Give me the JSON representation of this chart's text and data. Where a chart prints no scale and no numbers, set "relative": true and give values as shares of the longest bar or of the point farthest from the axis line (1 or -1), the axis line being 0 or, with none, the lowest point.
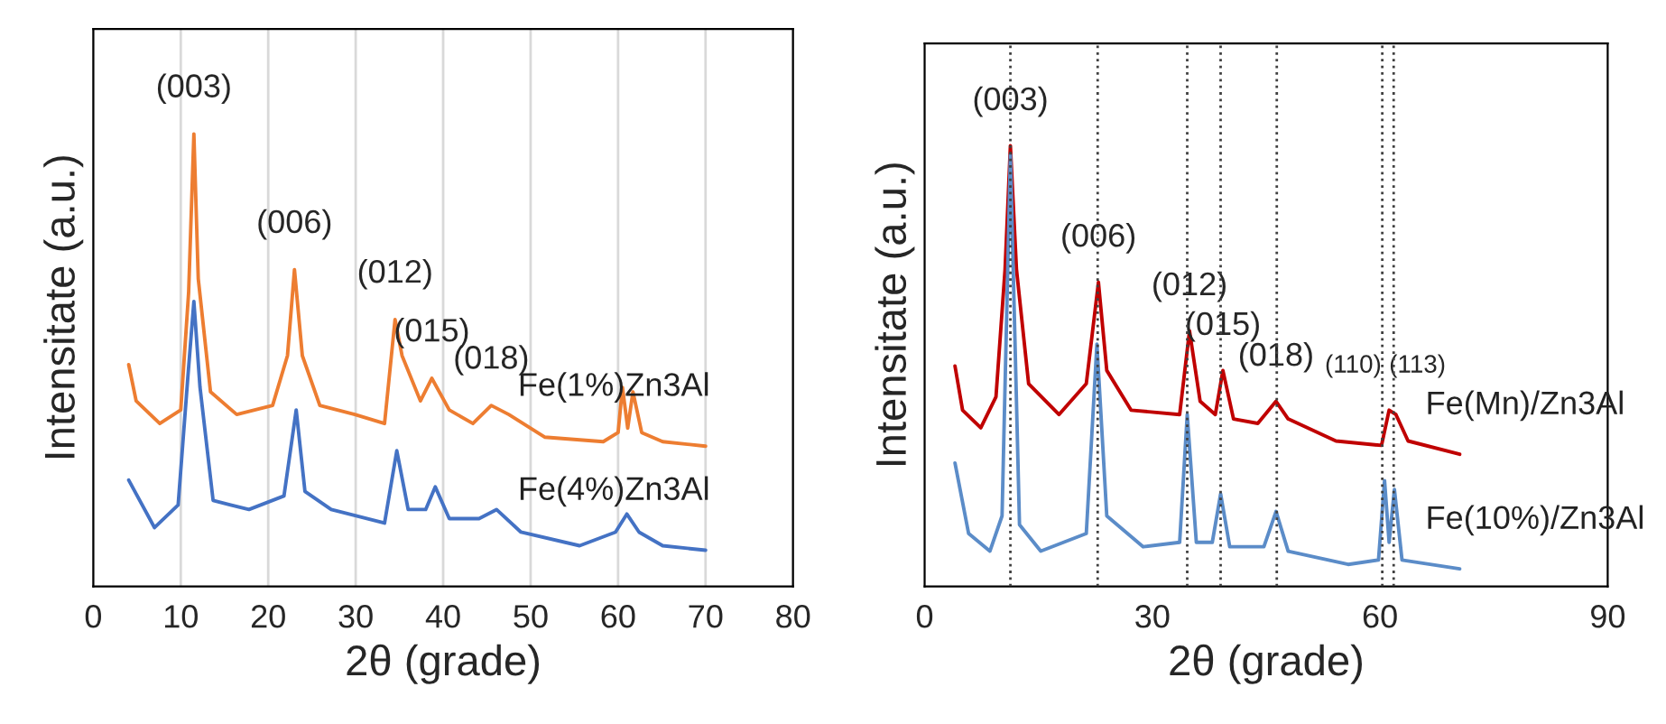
{
  "chart_data": [
    {
      "type": "line",
      "relative": true,
      "xlabel": "2θ (grade)",
      "ylabel": "Intensitate (a.u.)",
      "xlim": [
        0,
        80
      ],
      "xticks": [
        0,
        10,
        20,
        30,
        40,
        50,
        60,
        70,
        80
      ],
      "grid": "x",
      "legend": false,
      "series": [
        {
          "name": "Fe(1%)Zn3Al",
          "color": "#ed7d31",
          "x": [
            4.05,
            4.9,
            7.6,
            10,
            10.9,
            11.5,
            12.0,
            13.4,
            16.4,
            20.5,
            22.2,
            23.0,
            23.9,
            25.9,
            29.9,
            33.3,
            34.5,
            35.3,
            37.4,
            38.7,
            40.7,
            43.4,
            45.5,
            47.5,
            51.6,
            58.3,
            60.0,
            60.5,
            61.1,
            61.7,
            62.7,
            65.1,
            70
          ],
          "values": [
            0.49,
            0.41,
            0.36,
            0.39,
            0.65,
            1.0,
            0.68,
            0.43,
            0.38,
            0.4,
            0.51,
            0.7,
            0.51,
            0.4,
            0.38,
            0.36,
            0.59,
            0.51,
            0.41,
            0.46,
            0.39,
            0.36,
            0.4,
            0.38,
            0.33,
            0.32,
            0.34,
            0.44,
            0.35,
            0.43,
            0.34,
            0.32,
            0.31
          ]
        },
        {
          "name": "Fe(4%)Zn3Al",
          "color": "#4472c4",
          "x": [
            4.05,
            7.0,
            9.7,
            10.8,
            11.5,
            12.2,
            13.7,
            17.8,
            21.8,
            23.2,
            24.2,
            27.2,
            33.3,
            34.7,
            36.0,
            38.0,
            39.1,
            40.7,
            44.1,
            46.1,
            48.9,
            55.6,
            59.7,
            61.0,
            62.4,
            65.1,
            70
          ],
          "values": [
            0.235,
            0.13,
            0.18,
            0.46,
            0.63,
            0.44,
            0.19,
            0.17,
            0.2,
            0.39,
            0.21,
            0.17,
            0.14,
            0.3,
            0.17,
            0.17,
            0.22,
            0.15,
            0.15,
            0.17,
            0.12,
            0.09,
            0.12,
            0.16,
            0.12,
            0.09,
            0.08
          ]
        }
      ],
      "annotations": [
        {
          "text": "(003)",
          "x": 11.5,
          "y": 1.0
        },
        {
          "text": "(006)",
          "x": 23.0,
          "y": 0.7
        },
        {
          "text": "(012)",
          "x": 34.5,
          "y": 0.59
        },
        {
          "text": "(015)",
          "x": 38.7,
          "y": 0.46
        },
        {
          "text": "(018)",
          "x": 45.5,
          "y": 0.4
        }
      ]
    },
    {
      "type": "line",
      "relative": true,
      "xlabel": "2θ (grade)",
      "ylabel": "Intensitate (a.u.)",
      "xlim": [
        0,
        90
      ],
      "xticks": [
        0,
        30,
        60,
        90
      ],
      "legend": false,
      "series": [
        {
          "name": "Fe(Mn)/Zn3Al",
          "color": "#c00000",
          "x": [
            4.0,
            5.0,
            7.4,
            9.4,
            10.6,
            11.3,
            12.1,
            13.7,
            17.7,
            21.3,
            22.9,
            24.0,
            27.2,
            33.6,
            34.9,
            36.3,
            38.3,
            39.3,
            40.7,
            43.9,
            46.3,
            47.9,
            54.2,
            60.2,
            61.2,
            62.1,
            63.7,
            70.5
          ],
          "values": [
            0.5,
            0.4,
            0.36,
            0.43,
            0.72,
            1.0,
            0.72,
            0.46,
            0.39,
            0.46,
            0.69,
            0.49,
            0.4,
            0.39,
            0.58,
            0.42,
            0.39,
            0.49,
            0.38,
            0.37,
            0.42,
            0.38,
            0.33,
            0.32,
            0.4,
            0.39,
            0.33,
            0.3
          ]
        },
        {
          "name": "Fe(10%)/Zn3Al",
          "color": "#5b8cc8",
          "x": [
            4.0,
            5.8,
            8.6,
            10.2,
            11.3,
            12.5,
            15.3,
            21.3,
            22.7,
            24.0,
            28.8,
            33.6,
            34.6,
            35.8,
            37.9,
            39.0,
            40.2,
            44.7,
            46.3,
            47.9,
            55.8,
            59.8,
            60.6,
            61.2,
            61.9,
            62.9,
            70.5
          ],
          "values": [
            0.28,
            0.12,
            0.08,
            0.16,
            0.98,
            0.14,
            0.08,
            0.12,
            0.55,
            0.16,
            0.09,
            0.1,
            0.39,
            0.1,
            0.1,
            0.21,
            0.09,
            0.09,
            0.17,
            0.08,
            0.05,
            0.06,
            0.24,
            0.1,
            0.22,
            0.06,
            0.04
          ]
        }
      ],
      "ref_lines": [
        {
          "axis": "x",
          "value": 11.3,
          "color": "#404040",
          "line_style": "dotted"
        },
        {
          "axis": "x",
          "value": 22.8,
          "color": "#404040",
          "line_style": "dotted"
        },
        {
          "axis": "x",
          "value": 34.6,
          "color": "#404040",
          "line_style": "dotted"
        },
        {
          "axis": "x",
          "value": 39.0,
          "color": "#404040",
          "line_style": "dotted"
        },
        {
          "axis": "x",
          "value": 46.4,
          "color": "#404040",
          "line_style": "dotted"
        },
        {
          "axis": "x",
          "value": 60.3,
          "color": "#404040",
          "line_style": "dotted"
        },
        {
          "axis": "x",
          "value": 61.8,
          "color": "#404040",
          "line_style": "dotted"
        }
      ],
      "annotations": [
        {
          "text": "(003)",
          "x": 11.3,
          "y": 1.0
        },
        {
          "text": "(006)",
          "x": 22.9,
          "y": 0.69
        },
        {
          "text": "(012)",
          "x": 34.9,
          "y": 0.58
        },
        {
          "text": "(015)",
          "x": 39.3,
          "y": 0.49
        },
        {
          "text": "(018)",
          "x": 46.3,
          "y": 0.42
        },
        {
          "text": "(110)",
          "x": 60.2,
          "y": 0.32
        },
        {
          "text": "(113)",
          "x": 61.2,
          "y": 0.4
        }
      ]
    }
  ]
}
